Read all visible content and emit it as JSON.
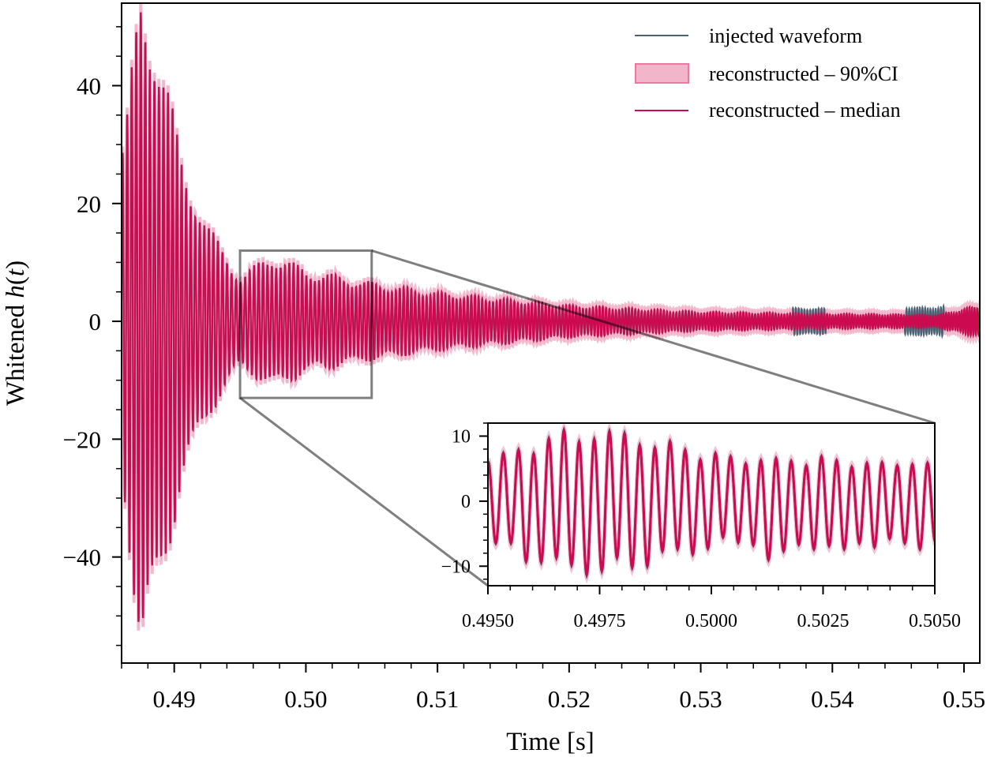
{
  "chart_data": {
    "type": "line",
    "title": "",
    "xlabel": "Time [s]",
    "ylabel_prefix": "Whitened ",
    "ylabel_italic": "h",
    "ylabel_suffix_open": "(",
    "ylabel_italic_t": "t",
    "ylabel_suffix_close": ")",
    "xlim": [
      0.486,
      0.5512
    ],
    "ylim": [
      -58,
      54
    ],
    "xticks": [
      0.49,
      0.5,
      0.51,
      0.52,
      0.53,
      0.54,
      0.55
    ],
    "xtick_labels": [
      "0.49",
      "0.50",
      "0.51",
      "0.52",
      "0.53",
      "0.54",
      "0.55"
    ],
    "x_minor_step": 0.002,
    "yticks": [
      -40,
      -20,
      0,
      20,
      40
    ],
    "ytick_labels": [
      "−40",
      "−20",
      "0",
      "20",
      "40"
    ],
    "y_minor_step": 5,
    "grid": false,
    "legend_position": "top-right",
    "series": [
      {
        "name": "injected waveform",
        "kind": "line",
        "color": "#4a6274"
      },
      {
        "name": "reconstructed – 90%CI",
        "kind": "band",
        "color": "#e87a9f",
        "fill_opacity": 0.55
      },
      {
        "name": "reconstructed – median",
        "kind": "line",
        "color": "#cc0a4f"
      }
    ],
    "signal_model": {
      "description": "Whitened ringdown-like oscillation, peak amplitude ~52 near t=0.4875 s decaying to ~1 by 0.55 s; oscillation frequency ~3 kHz near merger, ~5 kHz later",
      "envelope_points": [
        {
          "t": 0.4862,
          "amp": 28
        },
        {
          "t": 0.4875,
          "amp": 52
        },
        {
          "t": 0.4885,
          "amp": 46
        },
        {
          "t": 0.4905,
          "amp": 26
        },
        {
          "t": 0.4925,
          "amp": 15
        },
        {
          "t": 0.495,
          "amp": 7
        },
        {
          "t": 0.4975,
          "amp": 10.5
        },
        {
          "t": 0.5,
          "amp": 8
        },
        {
          "t": 0.505,
          "amp": 6
        },
        {
          "t": 0.51,
          "amp": 4.5
        },
        {
          "t": 0.52,
          "amp": 2.5
        },
        {
          "t": 0.53,
          "amp": 1.5
        },
        {
          "t": 0.54,
          "amp": 1.2
        },
        {
          "t": 0.548,
          "amp": 1.0
        },
        {
          "t": 0.5512,
          "amp": 2.5
        }
      ],
      "ci_half_width": 0.6
    },
    "zoom_box": {
      "xlim": [
        0.495,
        0.505
      ],
      "ylim": [
        -13,
        12
      ]
    },
    "inset": {
      "xlim": [
        0.495,
        0.505
      ],
      "ylim": [
        -13,
        12
      ],
      "xticks": [
        0.495,
        0.4975,
        0.5,
        0.5025,
        0.505
      ],
      "xtick_labels": [
        "0.4950",
        "0.4975",
        "0.5000",
        "0.5025",
        "0.5050"
      ],
      "x_minor_step": 0.0005,
      "yticks": [
        -10,
        0,
        10
      ],
      "ytick_labels": [
        "−10",
        "0",
        "10"
      ],
      "y_minor_step": 2,
      "peaks": [
        6,
        7.3,
        7.8,
        7.2,
        9.5,
        10.8,
        9,
        9.4,
        10.6,
        10.3,
        8.5,
        8.1,
        9.1,
        7.8,
        6.3,
        7.3,
        6.8,
        5.7,
        6.2,
        6.5,
        6.1,
        5.4,
        6.8,
        6.2,
        5.2,
        5.8,
        5.9,
        5.4,
        5.6,
        5.8
      ],
      "troughs": [
        -6.4,
        -6.4,
        -9.2,
        -9.3,
        -8.6,
        -9.7,
        -11.2,
        -10.6,
        -8.6,
        -10.1,
        -9.9,
        -7.6,
        -7.3,
        -8.1,
        -7.2,
        -5.5,
        -6.3,
        -6.7,
        -8.9,
        -7.6,
        -6.6,
        -7.3,
        -6.8,
        -7.3,
        -6.4,
        -7,
        -5.7,
        -6.4,
        -7.3,
        -6.1
      ]
    }
  }
}
